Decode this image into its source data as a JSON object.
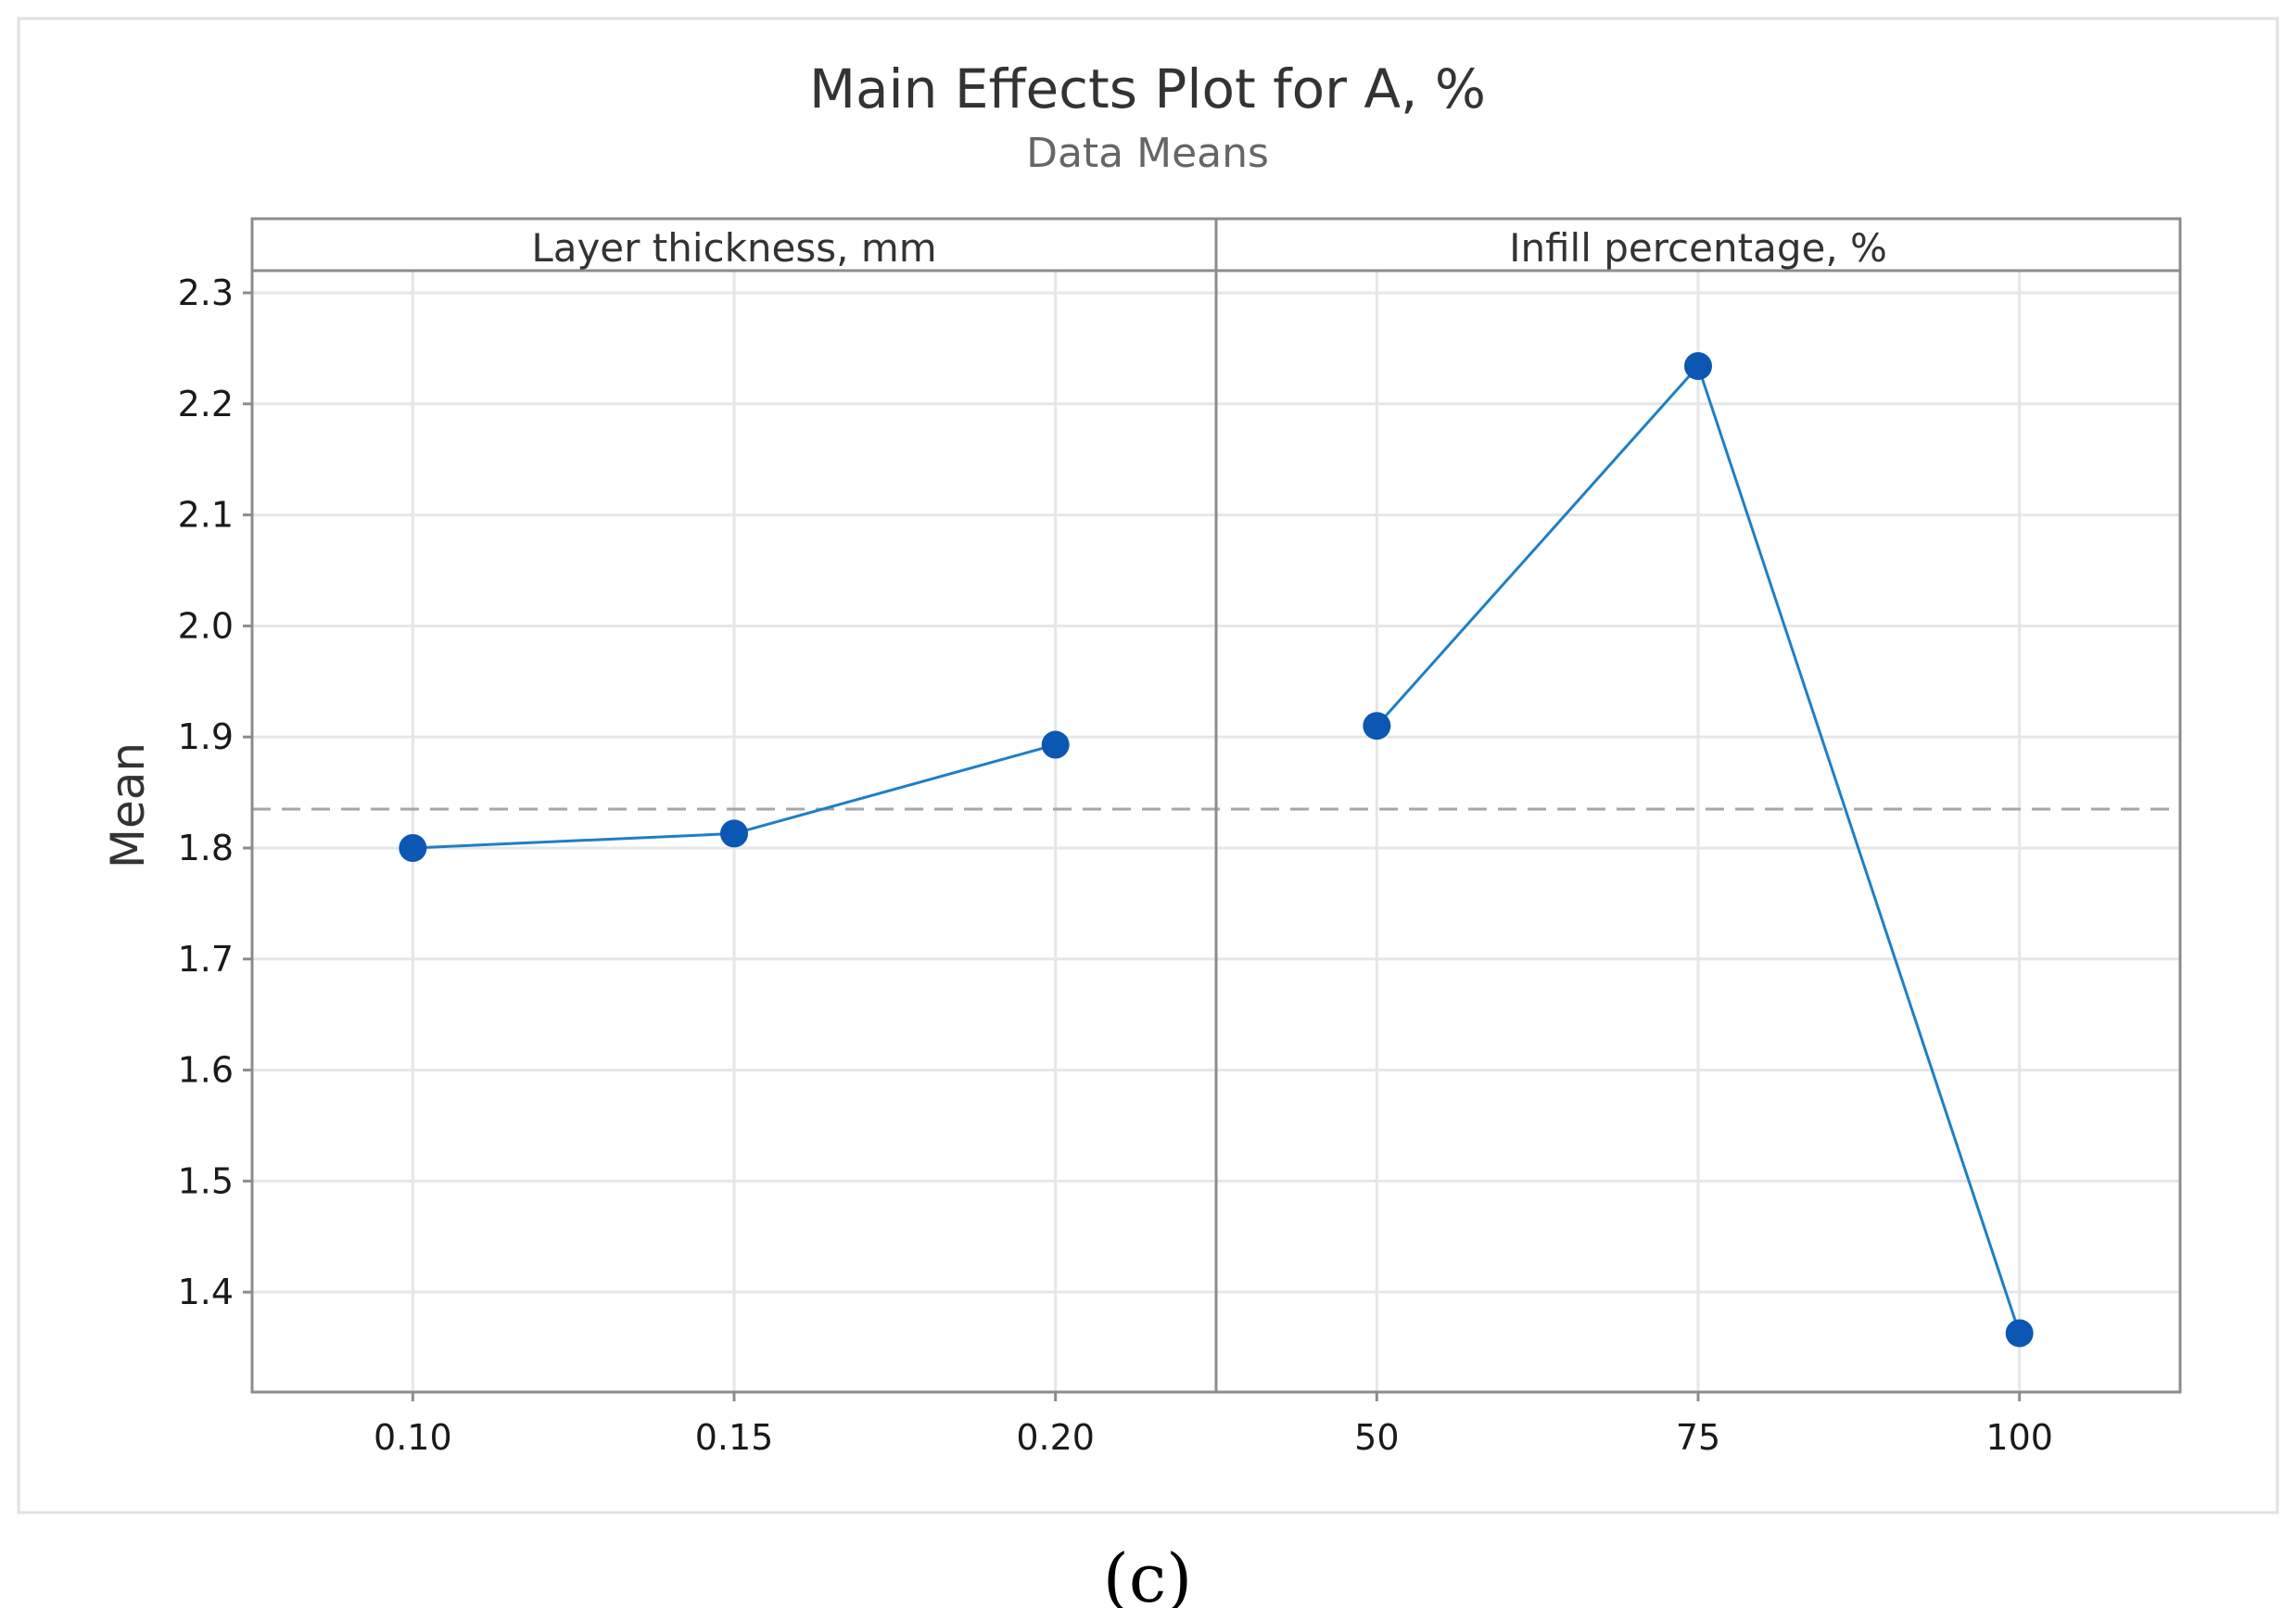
{
  "chart_data": {
    "type": "line",
    "title": "Main Effects Plot for A, %",
    "subtitle": "Data Means",
    "ylabel": "Mean",
    "ylim": [
      1.31,
      2.32
    ],
    "yticks": [
      "1.4",
      "1.5",
      "1.6",
      "1.7",
      "1.8",
      "1.9",
      "2.0",
      "2.1",
      "2.2",
      "2.3"
    ],
    "reference_line": 1.835,
    "grid": true,
    "panels": [
      {
        "label": "Layer thickness, mm",
        "categories": [
          "0.10",
          "0.15",
          "0.20"
        ],
        "values": [
          1.8,
          1.813,
          1.893
        ]
      },
      {
        "label": "Infill percentage, %",
        "categories": [
          "50",
          "75",
          "100"
        ],
        "values": [
          1.91,
          2.234,
          1.363
        ]
      }
    ],
    "colors": {
      "line": "#1f7fc4",
      "marker": "#0b57b3",
      "reference": "#a6a6a6",
      "grid": "#e6e6e6"
    }
  },
  "caption": "(c)"
}
